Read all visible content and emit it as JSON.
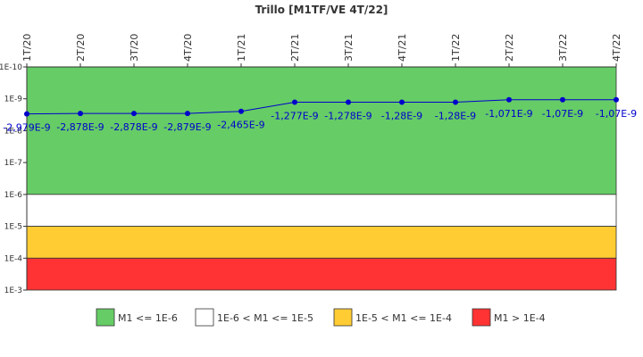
{
  "chart_data": {
    "type": "line",
    "title": "Trillo [M1TF/VE 4T/22]",
    "x": [
      "1T/20",
      "2T/20",
      "3T/20",
      "4T/20",
      "1T/21",
      "2T/21",
      "3T/21",
      "4T/21",
      "1T/22",
      "2T/22",
      "3T/22",
      "4T/22"
    ],
    "series": [
      {
        "values": [
          -2.979e-09,
          -2.878e-09,
          -2.878e-09,
          -2.879e-09,
          -2.465e-09,
          -1.277e-09,
          -1.278e-09,
          -1.28e-09,
          -1.28e-09,
          -1.071e-09,
          -1.07e-09,
          -1.07e-09
        ],
        "labels": [
          "-2,979E-9",
          "-2,878E-9",
          "-2,878E-9",
          "-2,879E-9",
          "-2,465E-9",
          "-1,277E-9",
          "-1,278E-9",
          "-1,28E-9",
          "-1,28E-9",
          "-1,071E-9",
          "-1,07E-9",
          "-1,07E-9"
        ],
        "color": "#0000cc"
      }
    ],
    "y_scale": "log",
    "y_inverted": true,
    "ylim": [
      1e-10,
      0.001
    ],
    "y_ticks": [
      {
        "value": 1e-10,
        "label": "1E-10"
      },
      {
        "value": 1e-09,
        "label": "1E-9"
      },
      {
        "value": 1e-08,
        "label": "1E-8"
      },
      {
        "value": 1e-07,
        "label": "1E-7"
      },
      {
        "value": 1e-06,
        "label": "1E-6"
      },
      {
        "value": 1e-05,
        "label": "1E-5"
      },
      {
        "value": 0.0001,
        "label": "1E-4"
      },
      {
        "value": 0.001,
        "label": "1E-3"
      }
    ],
    "bands": [
      {
        "from": 1e-10,
        "to": 1e-06,
        "color": "#66cc66",
        "label": "M1 <= 1E-6"
      },
      {
        "from": 1e-06,
        "to": 1e-05,
        "color": "#ffffff",
        "label": "1E-6 < M1 <= 1E-5"
      },
      {
        "from": 1e-05,
        "to": 0.0001,
        "color": "#ffcc33",
        "label": "1E-5 < M1 <= 1E-4"
      },
      {
        "from": 0.0001,
        "to": 0.001,
        "color": "#ff3333",
        "label": "M1 > 1E-4"
      }
    ],
    "x_axis_position": "top",
    "legend_position": "bottom",
    "grid": false
  }
}
